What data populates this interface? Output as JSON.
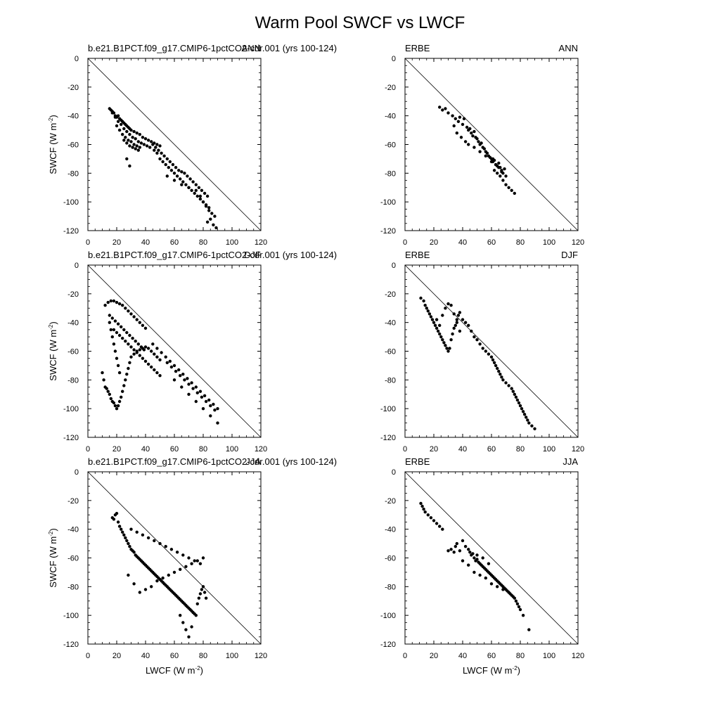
{
  "title": "Warm Pool SWCF vs LWCF",
  "axes": {
    "xlabel": "LWCF (W m",
    "ylabel": "SWCF (W m",
    "units_exponent": "-2",
    "xlim": [
      0,
      120
    ],
    "ylim": [
      -120,
      0
    ],
    "xticks": [
      0,
      20,
      40,
      60,
      80,
      100,
      120
    ],
    "yticks": [
      0,
      -20,
      -40,
      -60,
      -80,
      -100,
      -120
    ],
    "reference_line": "y = -x"
  },
  "chart_data": [
    {
      "type": "scatter",
      "source": "b.e21.B1PCT.f09_g17.CMIP6-1pctCO2-cdr.001 (yrs 100-124)",
      "season": "ANN",
      "x": [
        15,
        16,
        17,
        18,
        19,
        20,
        21,
        22,
        23,
        24,
        25,
        26,
        27,
        28,
        29,
        30,
        32,
        34,
        36,
        38,
        40,
        42,
        44,
        46,
        48,
        50,
        17,
        19,
        21,
        23,
        25,
        27,
        29,
        31,
        33,
        35,
        37,
        39,
        41,
        43,
        20,
        22,
        24,
        26,
        28,
        30,
        32,
        34,
        36,
        25,
        27,
        29,
        31,
        33,
        35,
        27,
        29,
        45,
        47,
        49,
        51,
        53,
        55,
        57,
        59,
        61,
        63,
        65,
        67,
        69,
        71,
        73,
        75,
        77,
        79,
        81,
        83,
        50,
        52,
        54,
        56,
        58,
        60,
        62,
        64,
        66,
        68,
        70,
        72,
        74,
        76,
        78,
        80,
        82,
        84,
        46,
        48,
        55,
        60,
        65,
        70,
        75,
        78,
        80,
        82,
        84,
        86,
        88,
        85,
        83,
        87,
        89
      ],
      "y": [
        -35,
        -36,
        -37,
        -38,
        -40,
        -41,
        -40,
        -42,
        -43,
        -44,
        -45,
        -46,
        -47,
        -48,
        -49,
        -50,
        -51,
        -52,
        -53,
        -55,
        -56,
        -57,
        -58,
        -59,
        -60,
        -61,
        -38,
        -41,
        -44,
        -46,
        -49,
        -51,
        -53,
        -55,
        -56,
        -58,
        -59,
        -60,
        -61,
        -62,
        -47,
        -50,
        -53,
        -55,
        -57,
        -58,
        -60,
        -61,
        -62,
        -57,
        -59,
        -61,
        -62,
        -63,
        -64,
        -70,
        -75,
        -60,
        -62,
        -64,
        -66,
        -68,
        -70,
        -72,
        -74,
        -76,
        -78,
        -79,
        -80,
        -82,
        -84,
        -86,
        -88,
        -90,
        -92,
        -94,
        -96,
        -70,
        -72,
        -74,
        -76,
        -78,
        -80,
        -82,
        -84,
        -86,
        -88,
        -90,
        -92,
        -94,
        -96,
        -98,
        -100,
        -102,
        -104,
        -64,
        -66,
        -82,
        -85,
        -88,
        -90,
        -92,
        -96,
        -100,
        -103,
        -106,
        -108,
        -110,
        -112,
        -114,
        -116,
        -118
      ]
    },
    {
      "type": "scatter",
      "source": "ERBE",
      "season": "ANN",
      "x": [
        24,
        26,
        28,
        30,
        33,
        35,
        37,
        38,
        40,
        41,
        43,
        44,
        45,
        46,
        47,
        48,
        49,
        50,
        51,
        52,
        53,
        54,
        55,
        56,
        57,
        58,
        59,
        60,
        61,
        62,
        63,
        64,
        65,
        66,
        67,
        68,
        69,
        70,
        34,
        36,
        39,
        42,
        44,
        48,
        52,
        56,
        60,
        62,
        64,
        66,
        68,
        70,
        72,
        74,
        76,
        61,
        63,
        65,
        67
      ],
      "y": [
        -34,
        -36,
        -35,
        -38,
        -40,
        -42,
        -44,
        -41,
        -46,
        -42,
        -48,
        -50,
        -49,
        -52,
        -54,
        -51,
        -55,
        -56,
        -58,
        -60,
        -59,
        -62,
        -63,
        -65,
        -66,
        -68,
        -69,
        -70,
        -72,
        -71,
        -74,
        -75,
        -73,
        -76,
        -78,
        -80,
        -77,
        -82,
        -47,
        -52,
        -55,
        -58,
        -60,
        -62,
        -65,
        -68,
        -72,
        -78,
        -80,
        -82,
        -85,
        -88,
        -90,
        -92,
        -94,
        -70,
        -74,
        -76,
        -79
      ]
    },
    {
      "type": "scatter",
      "source": "b.e21.B1PCT.f09_g17.CMIP6-1pctCO2-cdr.001 (yrs 100-124)",
      "season": "DJF",
      "x": [
        10,
        11,
        12,
        13,
        14,
        15,
        16,
        17,
        18,
        19,
        20,
        21,
        22,
        23,
        24,
        25,
        26,
        27,
        28,
        29,
        30,
        32,
        34,
        36,
        38,
        40,
        42,
        44,
        46,
        48,
        50,
        12,
        14,
        16,
        18,
        20,
        22,
        24,
        26,
        28,
        30,
        32,
        34,
        36,
        38,
        40,
        15,
        17,
        19,
        21,
        23,
        25,
        27,
        29,
        31,
        33,
        35,
        37,
        39,
        18,
        20,
        22,
        24,
        26,
        28,
        30,
        32,
        34,
        36,
        38,
        40,
        42,
        44,
        46,
        48,
        50,
        15,
        16,
        17,
        18,
        19,
        20,
        21,
        22,
        45,
        48,
        51,
        54,
        57,
        60,
        63,
        66,
        69,
        72,
        75,
        78,
        81,
        84,
        87,
        90,
        55,
        58,
        61,
        64,
        67,
        70,
        73,
        76,
        79,
        82,
        85,
        88,
        60,
        65,
        70,
        75,
        80,
        85,
        90
      ],
      "y": [
        -75,
        -80,
        -85,
        -86,
        -88,
        -90,
        -93,
        -95,
        -96,
        -98,
        -100,
        -98,
        -95,
        -92,
        -88,
        -84,
        -80,
        -76,
        -72,
        -68,
        -64,
        -62,
        -60,
        -59,
        -58,
        -57,
        -58,
        -60,
        -62,
        -64,
        -66,
        -28,
        -26,
        -25,
        -25,
        -26,
        -27,
        -28,
        -30,
        -32,
        -34,
        -36,
        -38,
        -40,
        -42,
        -44,
        -35,
        -37,
        -39,
        -41,
        -43,
        -45,
        -47,
        -49,
        -51,
        -53,
        -55,
        -57,
        -59,
        -45,
        -47,
        -49,
        -51,
        -53,
        -55,
        -57,
        -59,
        -61,
        -63,
        -65,
        -67,
        -69,
        -71,
        -73,
        -75,
        -77,
        -40,
        -45,
        -50,
        -55,
        -60,
        -65,
        -70,
        -75,
        -55,
        -58,
        -61,
        -64,
        -67,
        -70,
        -73,
        -76,
        -79,
        -82,
        -85,
        -88,
        -91,
        -94,
        -97,
        -100,
        -68,
        -71,
        -74,
        -77,
        -80,
        -83,
        -86,
        -89,
        -92,
        -95,
        -98,
        -101,
        -80,
        -85,
        -90,
        -95,
        -100,
        -105,
        -110
      ]
    },
    {
      "type": "scatter",
      "source": "ERBE",
      "season": "DJF",
      "x": [
        11,
        13,
        14,
        15,
        16,
        17,
        18,
        19,
        20,
        21,
        22,
        23,
        24,
        25,
        26,
        27,
        28,
        29,
        30,
        31,
        32,
        33,
        34,
        35,
        36,
        37,
        38,
        40,
        42,
        44,
        46,
        48,
        50,
        52,
        54,
        56,
        58,
        60,
        61,
        62,
        63,
        64,
        65,
        66,
        67,
        68,
        70,
        72,
        74,
        75,
        76,
        77,
        78,
        79,
        80,
        81,
        82,
        83,
        84,
        85,
        86,
        88,
        90,
        22,
        24,
        26,
        28,
        30,
        32,
        34,
        36,
        38
      ],
      "y": [
        -23,
        -25,
        -28,
        -30,
        -32,
        -34,
        -36,
        -38,
        -40,
        -42,
        -44,
        -46,
        -48,
        -50,
        -52,
        -54,
        -56,
        -58,
        -60,
        -58,
        -52,
        -48,
        -44,
        -42,
        -38,
        -35,
        -33,
        -38,
        -40,
        -42,
        -46,
        -50,
        -52,
        -55,
        -58,
        -60,
        -62,
        -64,
        -66,
        -68,
        -70,
        -72,
        -74,
        -76,
        -78,
        -80,
        -82,
        -84,
        -86,
        -88,
        -90,
        -92,
        -94,
        -96,
        -98,
        -100,
        -102,
        -104,
        -106,
        -108,
        -110,
        -112,
        -114,
        -38,
        -42,
        -35,
        -30,
        -27,
        -28,
        -34,
        -40,
        -46
      ]
    },
    {
      "type": "scatter",
      "source": "b.e21.B1PCT.f09_g17.CMIP6-1pctCO2-cdr.001 (yrs 100-124)",
      "season": "JJA",
      "x": [
        17,
        18,
        19,
        20,
        21,
        22,
        23,
        24,
        25,
        26,
        27,
        28,
        29,
        30,
        31,
        32,
        33,
        34,
        35,
        36,
        37,
        38,
        39,
        40,
        41,
        42,
        43,
        44,
        45,
        46,
        47,
        48,
        49,
        50,
        51,
        52,
        53,
        54,
        55,
        56,
        57,
        58,
        59,
        60,
        61,
        62,
        63,
        64,
        65,
        66,
        67,
        68,
        69,
        70,
        71,
        72,
        73,
        74,
        75,
        76,
        77,
        78,
        79,
        80,
        81,
        82,
        28,
        32,
        36,
        40,
        44,
        48,
        52,
        56,
        60,
        64,
        68,
        72,
        76,
        80,
        30,
        34,
        38,
        42,
        46,
        50,
        54,
        58,
        62,
        66,
        70,
        74,
        78,
        64,
        66,
        68,
        70,
        72
      ],
      "y": [
        -32,
        -33,
        -30,
        -29,
        -35,
        -38,
        -40,
        -42,
        -44,
        -46,
        -48,
        -50,
        -52,
        -54,
        -55,
        -56,
        -58,
        -59,
        -60,
        -61,
        -62,
        -63,
        -64,
        -65,
        -66,
        -67,
        -68,
        -69,
        -70,
        -71,
        -72,
        -73,
        -74,
        -75,
        -76,
        -77,
        -78,
        -79,
        -80,
        -81,
        -82,
        -83,
        -84,
        -85,
        -86,
        -87,
        -88,
        -89,
        -90,
        -91,
        -92,
        -93,
        -94,
        -95,
        -96,
        -97,
        -98,
        -99,
        -100,
        -92,
        -88,
        -85,
        -82,
        -80,
        -84,
        -88,
        -72,
        -78,
        -84,
        -82,
        -80,
        -76,
        -74,
        -72,
        -70,
        -68,
        -66,
        -64,
        -62,
        -60,
        -40,
        -42,
        -44,
        -46,
        -48,
        -50,
        -52,
        -54,
        -56,
        -58,
        -60,
        -62,
        -64,
        -100,
        -105,
        -110,
        -115,
        -108
      ]
    },
    {
      "type": "scatter",
      "source": "ERBE",
      "season": "JJA",
      "x": [
        11,
        12,
        13,
        14,
        16,
        18,
        20,
        22,
        24,
        26,
        30,
        32,
        34,
        35,
        36,
        38,
        40,
        42,
        44,
        45,
        46,
        47,
        48,
        49,
        50,
        51,
        52,
        53,
        54,
        55,
        56,
        57,
        58,
        59,
        60,
        61,
        62,
        63,
        64,
        65,
        66,
        67,
        68,
        69,
        70,
        71,
        72,
        73,
        74,
        75,
        76,
        77,
        78,
        79,
        80,
        82,
        86,
        40,
        44,
        48,
        52,
        56,
        60,
        64,
        68,
        72,
        50,
        54,
        58
      ],
      "y": [
        -22,
        -24,
        -26,
        -28,
        -30,
        -32,
        -34,
        -36,
        -38,
        -40,
        -55,
        -54,
        -56,
        -52,
        -50,
        -55,
        -48,
        -52,
        -54,
        -56,
        -58,
        -57,
        -60,
        -62,
        -61,
        -63,
        -64,
        -65,
        -66,
        -67,
        -68,
        -69,
        -70,
        -71,
        -72,
        -73,
        -74,
        -75,
        -76,
        -77,
        -78,
        -79,
        -80,
        -81,
        -82,
        -83,
        -84,
        -85,
        -86,
        -87,
        -88,
        -90,
        -92,
        -94,
        -96,
        -100,
        -110,
        -62,
        -65,
        -70,
        -72,
        -74,
        -78,
        -80,
        -82,
        -84,
        -58,
        -60,
        -64
      ]
    }
  ]
}
